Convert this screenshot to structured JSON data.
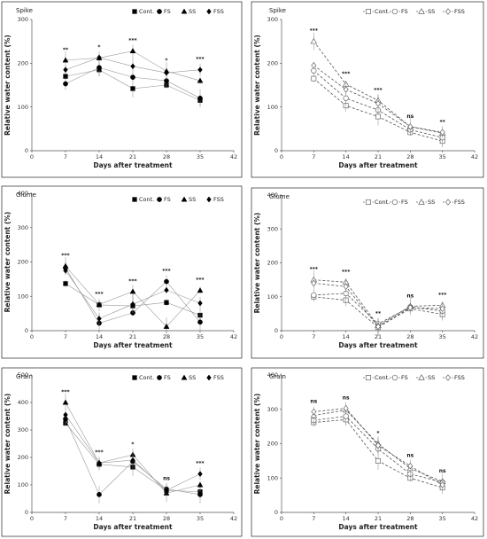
{
  "legend_labels": [
    "Cont.",
    "FS",
    "SS",
    "FSS"
  ],
  "xlabel": "Days after treatment",
  "ylabel": "Relative water content (%)",
  "chart_data": [
    {
      "type": "line",
      "title": "Spike",
      "xlim": [
        0,
        42
      ],
      "x_ticks": [
        0,
        7,
        14,
        21,
        28,
        35,
        42
      ],
      "ylim": [
        0,
        300
      ],
      "y_ticks": [
        0,
        100,
        200,
        300
      ],
      "hollow": false,
      "x": [
        7,
        14,
        21,
        28,
        35
      ],
      "series": [
        {
          "name": "Cont.",
          "marker": "square",
          "values": [
            170,
            185,
            142,
            150,
            115
          ]
        },
        {
          "name": "FS",
          "marker": "circle",
          "values": [
            153,
            190,
            168,
            160,
            120
          ]
        },
        {
          "name": "SS",
          "marker": "triangle",
          "values": [
            207,
            212,
            228,
            182,
            160
          ]
        },
        {
          "name": "FSS",
          "marker": "diamond",
          "values": [
            185,
            213,
            193,
            178,
            185
          ]
        }
      ],
      "significance": [
        "**",
        "*",
        "***",
        "*",
        "***"
      ]
    },
    {
      "type": "line",
      "title": "Spike",
      "xlim": [
        0,
        42
      ],
      "x_ticks": [
        0,
        7,
        14,
        21,
        28,
        35,
        42
      ],
      "ylim": [
        0,
        300
      ],
      "y_ticks": [
        0,
        100,
        200,
        300
      ],
      "hollow": true,
      "x": [
        7,
        14,
        21,
        28,
        35
      ],
      "series": [
        {
          "name": "Cont.",
          "marker": "square",
          "values": [
            165,
            103,
            78,
            42,
            22
          ]
        },
        {
          "name": "FS",
          "marker": "circle",
          "values": [
            183,
            120,
            93,
            48,
            30
          ]
        },
        {
          "name": "SS",
          "marker": "triangle",
          "values": [
            250,
            152,
            115,
            55,
            40
          ]
        },
        {
          "name": "FSS",
          "marker": "diamond",
          "values": [
            195,
            140,
            108,
            55,
            42
          ]
        }
      ],
      "significance": [
        "***",
        "***",
        "***",
        "ns",
        "**"
      ]
    },
    {
      "type": "line",
      "title": "Glume",
      "xlim": [
        0,
        42
      ],
      "x_ticks": [
        0,
        7,
        14,
        21,
        28,
        35,
        42
      ],
      "ylim": [
        0,
        400
      ],
      "y_ticks": [
        0,
        100,
        200,
        300,
        400
      ],
      "hollow": false,
      "x": [
        7,
        14,
        21,
        28,
        35
      ],
      "series": [
        {
          "name": "Cont.",
          "marker": "square",
          "values": [
            137,
            75,
            72,
            82,
            45
          ]
        },
        {
          "name": "FS",
          "marker": "circle",
          "values": [
            183,
            22,
            52,
            143,
            25
          ]
        },
        {
          "name": "SS",
          "marker": "triangle",
          "values": [
            188,
            76,
            114,
            12,
            117
          ]
        },
        {
          "name": "FSS",
          "marker": "diamond",
          "values": [
            175,
            35,
            77,
            118,
            80
          ]
        }
      ],
      "significance": [
        "***",
        "***",
        "***",
        "***",
        "***"
      ]
    },
    {
      "type": "line",
      "title": "Glume",
      "xlim": [
        0,
        42
      ],
      "x_ticks": [
        0,
        7,
        14,
        21,
        28,
        35,
        42
      ],
      "ylim": [
        0,
        400
      ],
      "y_ticks": [
        0,
        100,
        200,
        300,
        400
      ],
      "hollow": true,
      "x": [
        7,
        14,
        21,
        28,
        35
      ],
      "series": [
        {
          "name": "Cont.",
          "marker": "square",
          "values": [
            100,
            90,
            10,
            65,
            48
          ]
        },
        {
          "name": "FS",
          "marker": "circle",
          "values": [
            105,
            110,
            20,
            70,
            58
          ]
        },
        {
          "name": "SS",
          "marker": "triangle",
          "values": [
            150,
            143,
            15,
            72,
            75
          ]
        },
        {
          "name": "FSS",
          "marker": "diamond",
          "values": [
            140,
            130,
            12,
            68,
            65
          ]
        }
      ],
      "significance": [
        "***",
        "***",
        "**",
        "ns",
        "***"
      ]
    },
    {
      "type": "line",
      "title": "Grain",
      "xlim": [
        0,
        42
      ],
      "x_ticks": [
        0,
        7,
        14,
        21,
        28,
        35,
        42
      ],
      "ylim": [
        0,
        500
      ],
      "y_ticks": [
        0,
        100,
        200,
        300,
        400,
        500
      ],
      "hollow": false,
      "x": [
        7,
        14,
        21,
        28,
        35
      ],
      "series": [
        {
          "name": "Cont.",
          "marker": "square",
          "values": [
            325,
            175,
            165,
            80,
            75
          ]
        },
        {
          "name": "FS",
          "marker": "circle",
          "values": [
            340,
            65,
            185,
            85,
            65
          ]
        },
        {
          "name": "SS",
          "marker": "triangle",
          "values": [
            400,
            180,
            210,
            70,
            100
          ]
        },
        {
          "name": "FSS",
          "marker": "diamond",
          "values": [
            355,
            180,
            190,
            80,
            140
          ]
        }
      ],
      "significance": [
        "***",
        "***",
        "*",
        "ns",
        "***"
      ]
    },
    {
      "type": "line",
      "title": "Grain",
      "xlim": [
        0,
        42
      ],
      "x_ticks": [
        0,
        7,
        14,
        21,
        28,
        35,
        42
      ],
      "ylim": [
        0,
        400
      ],
      "y_ticks": [
        0,
        100,
        200,
        300,
        400
      ],
      "hollow": true,
      "x": [
        7,
        14,
        21,
        28,
        35
      ],
      "series": [
        {
          "name": "Cont.",
          "marker": "square",
          "values": [
            262,
            270,
            150,
            100,
            72
          ]
        },
        {
          "name": "FS",
          "marker": "circle",
          "values": [
            268,
            280,
            185,
            112,
            88
          ]
        },
        {
          "name": "SS",
          "marker": "triangle",
          "values": [
            282,
            298,
            200,
            128,
            90
          ]
        },
        {
          "name": "FSS",
          "marker": "diamond",
          "values": [
            293,
            303,
            195,
            135,
            80
          ]
        }
      ],
      "significance": [
        "ns",
        "ns",
        "*",
        "ns",
        "ns"
      ]
    }
  ]
}
